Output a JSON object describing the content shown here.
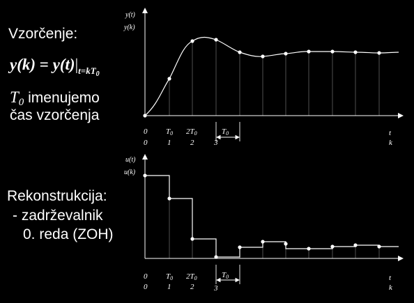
{
  "left_text": {
    "heading": "Vzorčenje:",
    "eq_lhs": "y(k)",
    "eq_eq": "=",
    "eq_rhs": "y(t)",
    "eq_bar": "|",
    "eq_sub": "t=kT",
    "eq_subsub": "0",
    "t0_sym": "T",
    "t0_sub": "0",
    "t0_text": " imenujemo",
    "t0_text2": "čas vzorčenja",
    "recon_title": "Rekonstrukcija:",
    "recon_line1": "- zadrževalnik",
    "recon_line2": "0. reda (ZOH)"
  },
  "top_plot": {
    "ylabel1": "y(t)",
    "ylabel2": "y(k)",
    "xticks_top": [
      "0",
      "T",
      "2T",
      "T"
    ],
    "xticks_bottom": [
      "0",
      "1",
      "2",
      "3"
    ],
    "xlabel_t": "t",
    "xlabel_k": "k",
    "t0_sub": "0"
  },
  "bottom_plot": {
    "ylabel1": "u(t)",
    "ylabel2": "u(k)",
    "xticks_top": [
      "0",
      "T",
      "2T",
      "T"
    ],
    "xticks_bottom": [
      "0",
      "1",
      "2",
      "3"
    ],
    "xlabel_t": "t",
    "xlabel_k": "k",
    "t0_sub": "0"
  },
  "colors": {
    "background": "#000000",
    "foreground": "#ffffff"
  }
}
